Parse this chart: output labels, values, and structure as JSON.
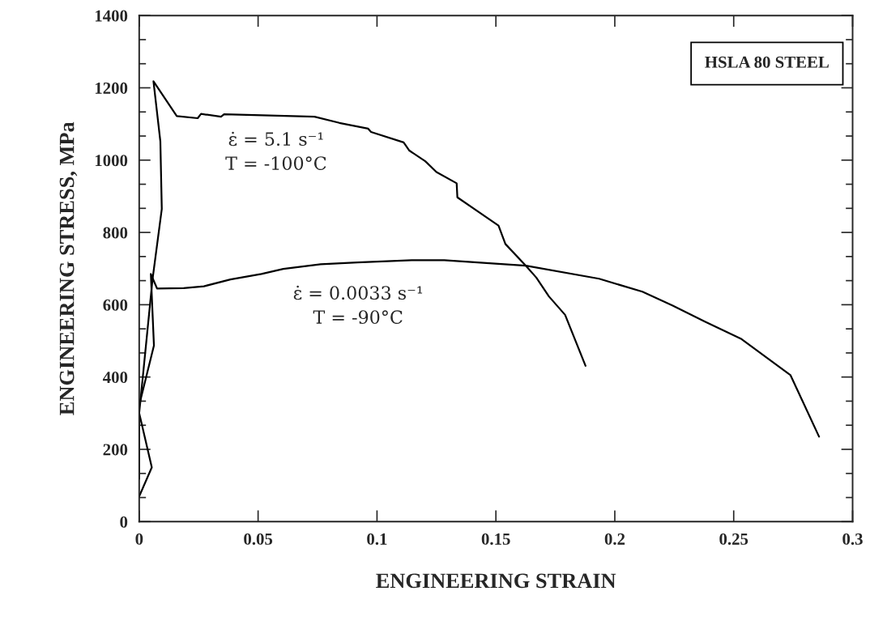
{
  "chart_data": {
    "type": "line",
    "xlabel": "ENGINEERING STRAIN",
    "ylabel": "ENGINEERING STRESS, MPa",
    "series": [
      {
        "color": "#000000",
        "x": [
          0,
          0.0053,
          0,
          0.0056,
          0.0095,
          0.0089,
          0.006,
          0.0158,
          0.0246,
          0.026,
          0.0344,
          0.0357,
          0.058,
          0.0737,
          0.0842,
          0.0963,
          0.0975,
          0.1112,
          0.1135,
          0.1203,
          0.125,
          0.1335,
          0.1338,
          0.1511,
          0.154,
          0.1626,
          0.167,
          0.1723,
          0.1791,
          0.1877
        ],
        "values": [
          70,
          150,
          300,
          670,
          865,
          1052,
          1218,
          1122,
          1116,
          1128,
          1120,
          1127,
          1123,
          1120,
          1103,
          1087,
          1078,
          1049,
          1027,
          997,
          967,
          936,
          897,
          819,
          768,
          708,
          675,
          623,
          572,
          431
        ]
      },
      {
        "color": "#000000",
        "x": [
          0,
          0,
          0.0062,
          0.0049,
          0.0075,
          0.0187,
          0.0272,
          0.0384,
          0.0514,
          0.0606,
          0.0763,
          0.0918,
          0.1146,
          0.1283,
          0.1485,
          0.1626,
          0.1934,
          0.2116,
          0.2242,
          0.2379,
          0.2533,
          0.2739,
          0.2859
        ],
        "values": [
          118,
          322,
          487,
          685,
          645,
          646,
          651,
          670,
          685,
          699,
          712,
          717,
          723,
          723,
          714,
          708,
          672,
          636,
          598,
          553,
          505,
          405,
          235
        ]
      }
    ],
    "annotations": [
      "ε̇ = 5.1 s⁻¹\nT = -100°C",
      "ε̇ = 0.0033 s⁻¹\nT = -90°C",
      "HSLA 80 STEEL"
    ],
    "xlim": [
      0,
      0.3
    ],
    "xticks": [
      0,
      0.05,
      0.1,
      0.15,
      0.2,
      0.25,
      0.3
    ],
    "ylim": [
      0,
      1400
    ],
    "yticks": [
      0,
      200,
      400,
      600,
      800,
      1000,
      1200,
      1400
    ],
    "grid": false,
    "legend": false,
    "marker": "none",
    "line_style": "solid"
  }
}
